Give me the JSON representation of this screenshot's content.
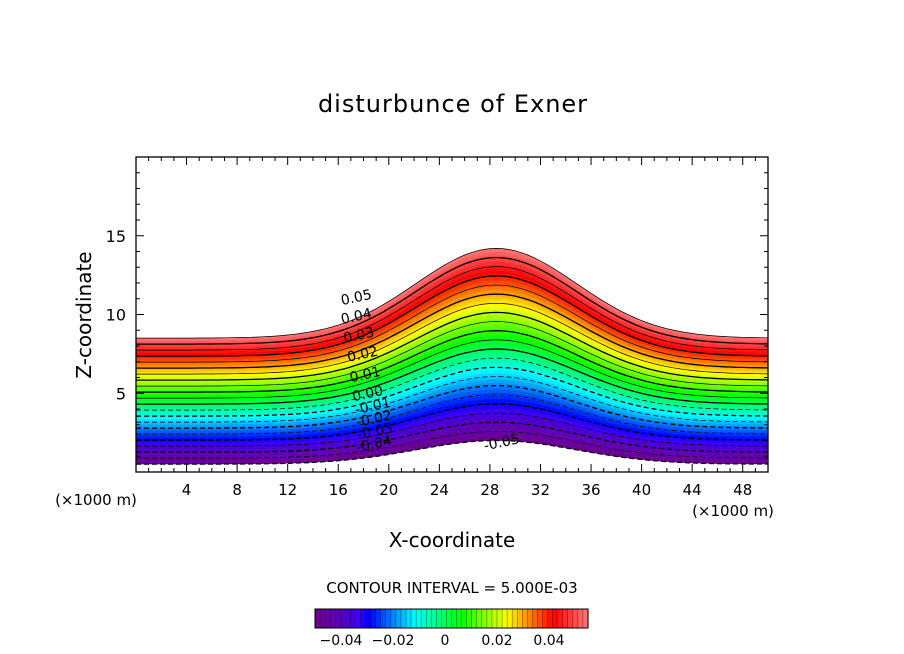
{
  "chart_data": {
    "type": "contour",
    "title": "disturbunce of Exner",
    "xlabel": "X-coordinate",
    "ylabel": "Z-coordinate",
    "x_unit_left": "(×1000 m)",
    "x_unit_right": "(×1000 m)",
    "xlim": [
      0,
      50
    ],
    "ylim": [
      0,
      20
    ],
    "x_ticks": [
      4,
      8,
      12,
      16,
      20,
      24,
      28,
      32,
      36,
      40,
      44,
      48
    ],
    "x_tick_labels": [
      "4",
      "8",
      "12",
      "16",
      "20",
      "24",
      "28",
      "32",
      "36",
      "40",
      "44",
      "48"
    ],
    "y_ticks": [
      5,
      10,
      15
    ],
    "y_tick_labels": [
      "5",
      "10",
      "15"
    ],
    "field": {
      "min": -0.05,
      "max": 0.055,
      "terrain_peak_x": 28.5,
      "terrain_width": 9,
      "layer_bottom_edges": [
        0.5,
        1.5
      ],
      "layer_bottom_center": [
        2.0,
        2.5
      ],
      "layer_top_edges": 8.5,
      "layer_top_center": 14.2
    },
    "contour_interval_text": "CONTOUR INTERVAL = 5.000E-03",
    "contour_labels": [
      {
        "value": "0.05",
        "x": 17.5,
        "z": 10.8
      },
      {
        "value": "0.04",
        "x": 17.5,
        "z": 9.6
      },
      {
        "value": "0.03",
        "x": 17.7,
        "z": 8.4
      },
      {
        "value": "0.02",
        "x": 18.0,
        "z": 7.2
      },
      {
        "value": "0.01",
        "x": 18.2,
        "z": 5.9
      },
      {
        "value": "0.00",
        "x": 18.4,
        "z": 4.7
      },
      {
        "value": "-0.01",
        "x": 18.8,
        "z": 3.9
      },
      {
        "value": "-0.02",
        "x": 18.9,
        "z": 3.1
      },
      {
        "value": "-0.03",
        "x": 19.0,
        "z": 2.3
      },
      {
        "value": "-0.04",
        "x": 18.9,
        "z": 1.5
      },
      {
        "value": "-0.05",
        "x": 29.0,
        "z": 1.6
      }
    ],
    "colorbar": {
      "min": -0.05,
      "max": 0.055,
      "ticks": [
        -0.04,
        -0.02,
        0,
        0.02,
        0.04
      ],
      "tick_labels": [
        "−0.04",
        "−0.02",
        "0",
        "0.02",
        "0.04"
      ]
    }
  }
}
